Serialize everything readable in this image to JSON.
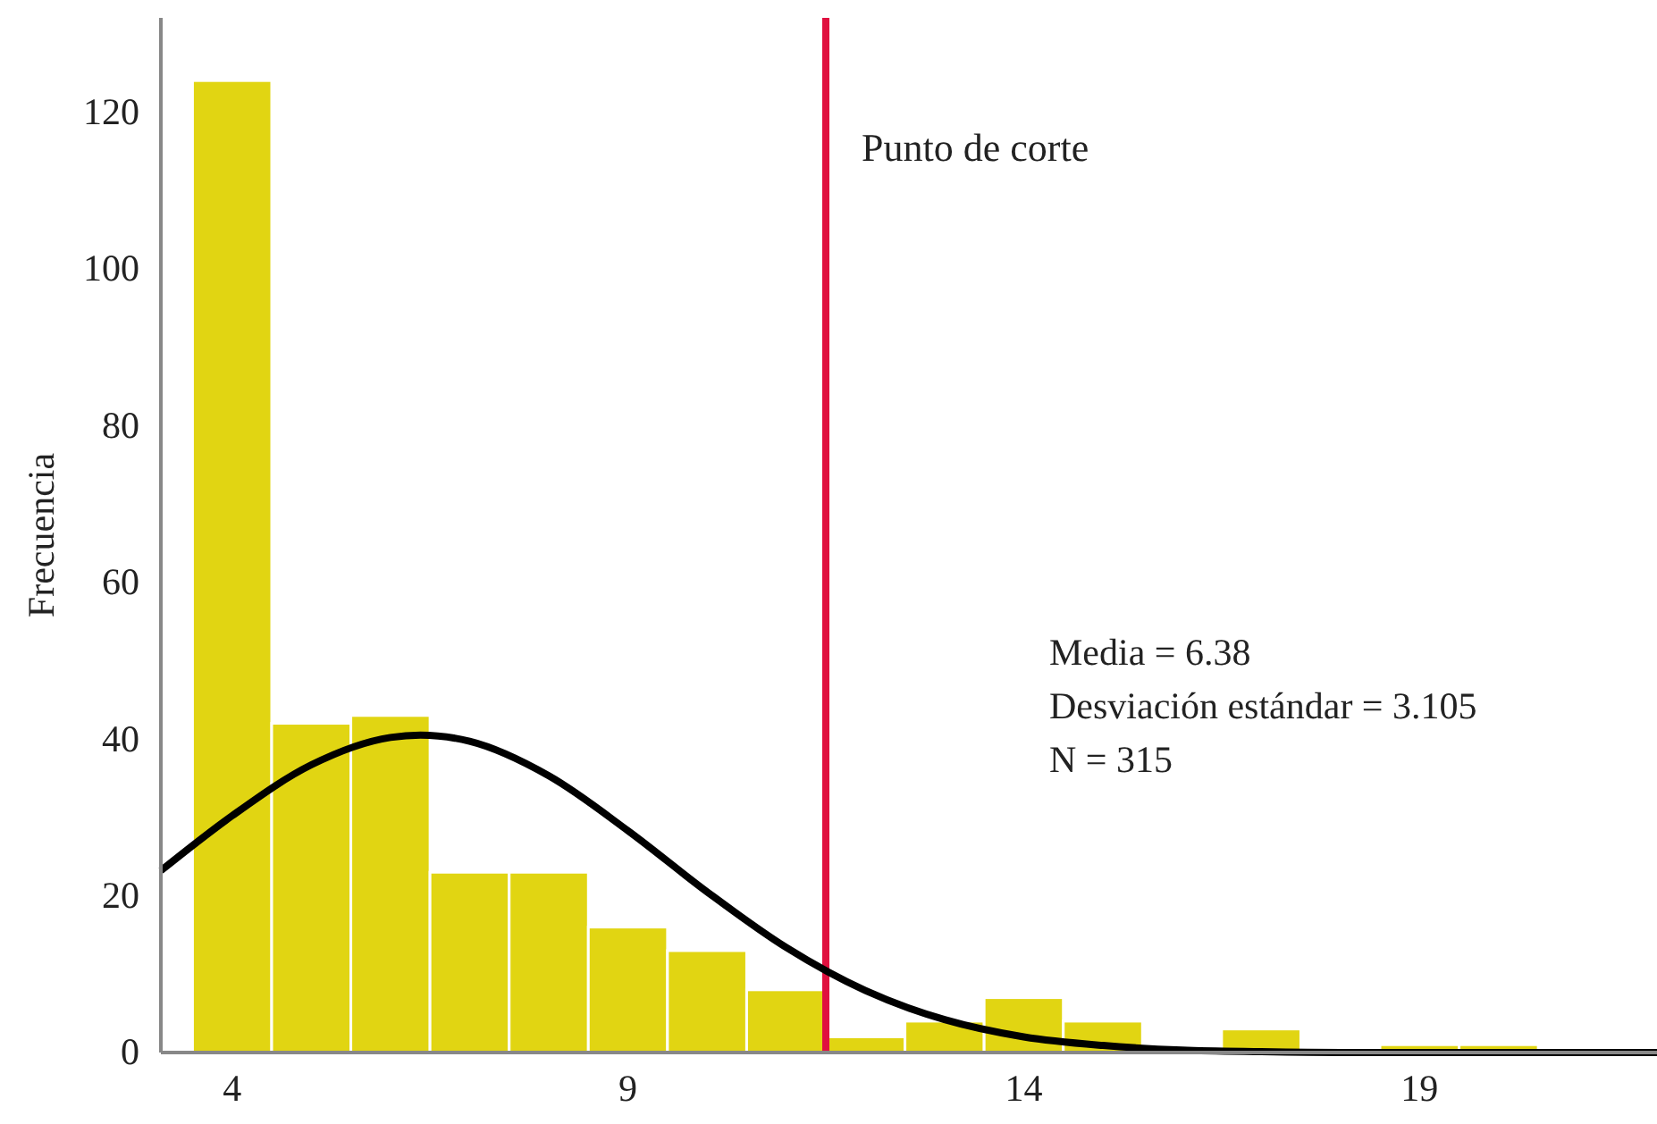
{
  "chart_data": {
    "type": "histogram",
    "ylabel": "Frecuencia",
    "bins": [
      3.5,
      4.5,
      5.5,
      6.5,
      7.5,
      8.5,
      9.5,
      10.5,
      11.5,
      12.5,
      13.5,
      14.5,
      15.5,
      16.5,
      17.5,
      18.5,
      19.5,
      20.5
    ],
    "values": [
      124,
      42,
      43,
      23,
      23,
      16,
      13,
      8,
      2,
      4,
      7,
      4,
      0,
      3,
      0,
      1,
      1
    ],
    "color": "#e1d512",
    "series": [
      {
        "type": "line",
        "color": "#000000",
        "x": [
          3.1,
          4,
          5,
          6,
          6.38,
          7,
          8,
          9,
          10,
          11,
          12,
          13,
          14,
          15,
          16,
          17,
          18,
          19,
          20,
          22
        ],
        "values": [
          23.2,
          30.2,
          36.7,
          40.2,
          40.5,
          39.7,
          35.3,
          28.3,
          20.5,
          13.4,
          7.9,
          4.2,
          2.0,
          0.9,
          0.3,
          0.1,
          0,
          0,
          0,
          0
        ]
      }
    ],
    "xlim": [
      3.1,
      22
    ],
    "xticks": [
      4,
      9,
      14,
      19
    ],
    "ylim": [
      0,
      132
    ],
    "yticks": [
      0,
      20,
      40,
      60,
      80,
      100,
      120
    ],
    "grid": false,
    "ref_lines": [
      {
        "axis": "x",
        "value": 11.5,
        "label": "Punto de corte",
        "color": "#e0103f"
      }
    ],
    "annotations": [
      "Media = 6.38",
      "Desviación estándar = 3.105",
      "N = 315"
    ]
  }
}
